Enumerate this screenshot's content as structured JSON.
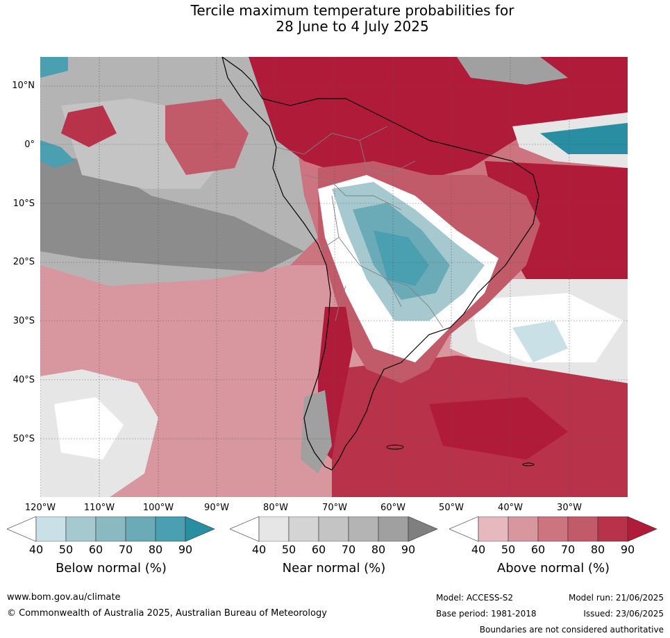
{
  "title": {
    "line1": "Tercile maximum temperature probabilities for",
    "line2": "28 June to 4 July 2025"
  },
  "map": {
    "lat_labels": [
      "10°N",
      "0°",
      "10°S",
      "20°S",
      "30°S",
      "40°S",
      "50°S"
    ],
    "lon_labels": [
      "120°W",
      "110°W",
      "100°W",
      "90°W",
      "80°W",
      "70°W",
      "60°W",
      "50°W",
      "40°W",
      "30°W"
    ]
  },
  "colorbars": [
    {
      "title": "Below normal (%)",
      "ticks": [
        "40",
        "50",
        "60",
        "70",
        "80",
        "90"
      ],
      "colors": [
        "#ffffff",
        "#c9e0e6",
        "#a6c9cf",
        "#8ab9c1",
        "#6aabb7",
        "#4aa0b0",
        "#2a8ea2"
      ]
    },
    {
      "title": "Near normal (%)",
      "ticks": [
        "40",
        "50",
        "60",
        "70",
        "80",
        "90"
      ],
      "colors": [
        "#ffffff",
        "#e6e6e6",
        "#d4d4d4",
        "#c4c4c4",
        "#b4b4b4",
        "#a0a0a0",
        "#7f7f7f"
      ]
    },
    {
      "title": "Above normal (%)",
      "ticks": [
        "40",
        "50",
        "60",
        "70",
        "80",
        "90"
      ],
      "colors": [
        "#ffffff",
        "#e6b9be",
        "#d8969e",
        "#cc7480",
        "#c25b69",
        "#b83349",
        "#b01b3a"
      ]
    }
  ],
  "footer": {
    "website": "www.bom.gov.au/climate",
    "copyright": "© Commonwealth of Australia 2025, Australian Bureau of Meteorology",
    "model": "Model: ACCESS-S2",
    "model_run": "Model run: 21/06/2025",
    "base_period": "Base period: 1981-2018",
    "issued": "Issued: 23/06/2025",
    "disclaimer": "Boundaries are not considered authoritative"
  }
}
